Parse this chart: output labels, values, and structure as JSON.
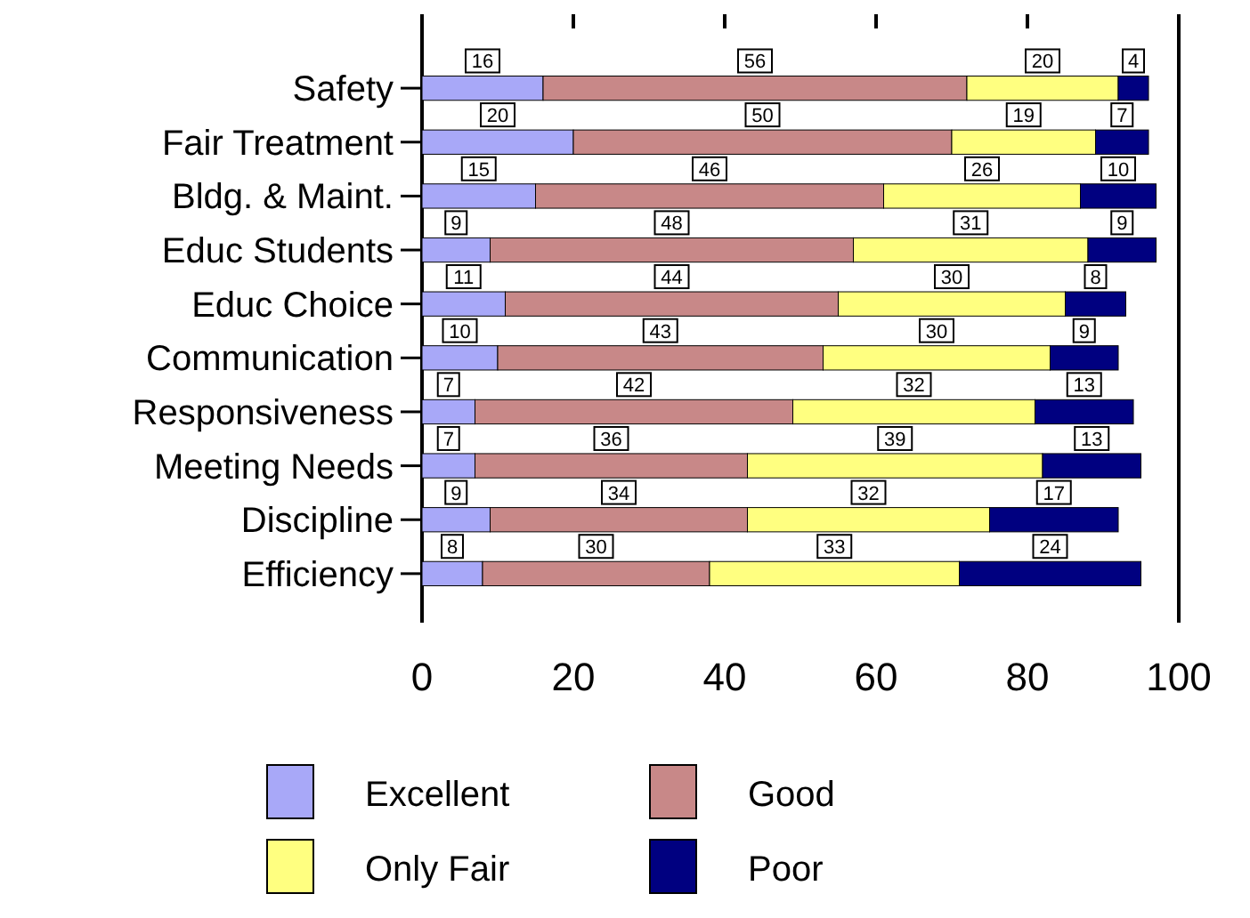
{
  "chart_data": {
    "type": "bar",
    "orientation": "horizontal",
    "stacked": true,
    "data_labels": true,
    "legend": "bottom",
    "grid": false,
    "categories": [
      "Safety",
      "Fair Treatment",
      "Bldg. & Maint.",
      "Educ Students",
      "Educ Choice",
      "Communication",
      "Responsiveness",
      "Meeting Needs",
      "Discipline",
      "Efficiency"
    ],
    "series": [
      {
        "name": "Excellent",
        "color": "#a8a8f8",
        "values": [
          16,
          20,
          15,
          9,
          11,
          10,
          7,
          7,
          9,
          8
        ]
      },
      {
        "name": "Good",
        "color": "#c88888",
        "values": [
          56,
          50,
          46,
          48,
          44,
          43,
          42,
          36,
          34,
          30
        ]
      },
      {
        "name": "Only Fair",
        "color": "#ffff80",
        "values": [
          20,
          19,
          26,
          31,
          30,
          30,
          32,
          39,
          32,
          33
        ]
      },
      {
        "name": "Poor",
        "color": "#000080",
        "values": [
          4,
          7,
          10,
          9,
          8,
          9,
          13,
          13,
          17,
          24
        ]
      }
    ],
    "xlim": [
      0,
      100
    ],
    "xticks": [
      0,
      20,
      40,
      60,
      80,
      100
    ]
  }
}
